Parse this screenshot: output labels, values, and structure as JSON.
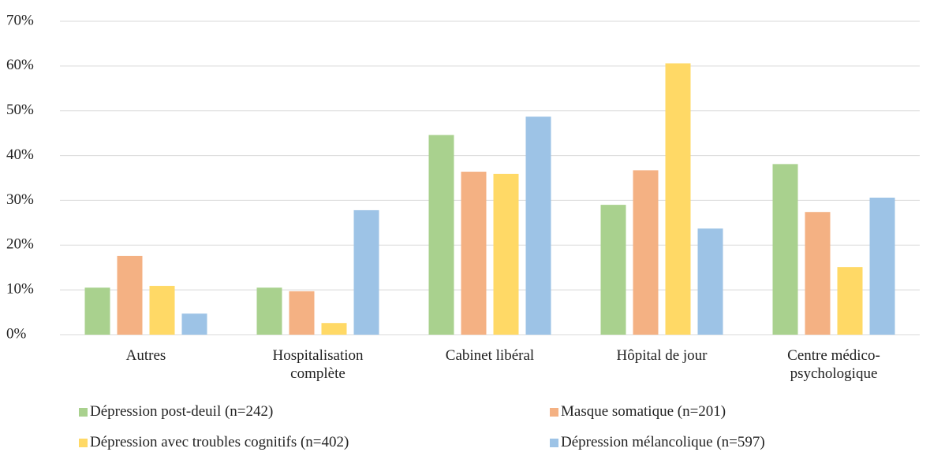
{
  "chart_data": {
    "type": "bar",
    "categories": [
      "Autres",
      "Hospitalisation complète",
      "Cabinet libéral",
      "Hôpital de jour",
      "Centre médico-psychologique"
    ],
    "series": [
      {
        "name": "Dépression post-deuil (n=242)",
        "color": "#a9d18e",
        "values": [
          10.5,
          10.5,
          44.6,
          29.0,
          38.1
        ]
      },
      {
        "name": "Masque somatique (n=201)",
        "color": "#f4b183",
        "values": [
          17.6,
          9.7,
          36.4,
          36.7,
          27.4
        ]
      },
      {
        "name": "Dépression avec troubles cognitifs (n=402)",
        "color": "#ffd966",
        "values": [
          10.9,
          2.6,
          35.9,
          60.6,
          15.1
        ]
      },
      {
        "name": "Dépression mélancolique (n=597)",
        "color": "#9dc3e6",
        "values": [
          4.7,
          27.8,
          48.7,
          23.7,
          30.6
        ]
      }
    ],
    "ylim": [
      0,
      70
    ],
    "yticks": [
      {
        "value": 0,
        "label": "0%"
      },
      {
        "value": 10,
        "label": "10%"
      },
      {
        "value": 20,
        "label": "20%"
      },
      {
        "value": 30,
        "label": "30%"
      },
      {
        "value": 40,
        "label": "40%"
      },
      {
        "value": 50,
        "label": "50%"
      },
      {
        "value": 60,
        "label": "60%"
      },
      {
        "value": 70,
        "label": "70%"
      }
    ],
    "grid": true,
    "legend": "bottom"
  }
}
